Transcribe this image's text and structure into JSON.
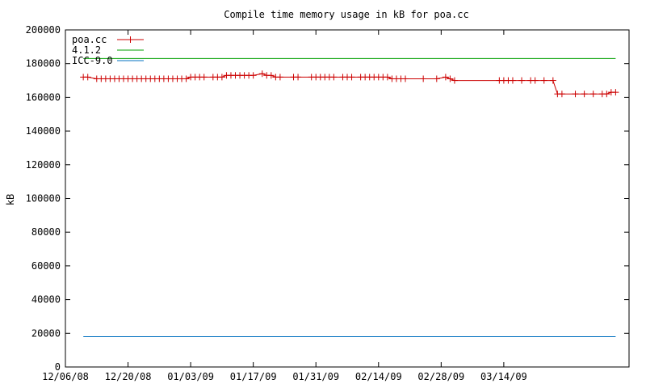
{
  "chart_data": {
    "type": "line",
    "title": "Compile time memory usage in kB for poa.cc",
    "xlabel": "",
    "ylabel": "kB",
    "ylim": [
      0,
      200000
    ],
    "xlim": [
      "2008-12-06",
      "2009-04-11"
    ],
    "yticks": [
      0,
      20000,
      40000,
      60000,
      80000,
      100000,
      120000,
      140000,
      160000,
      180000,
      200000
    ],
    "xticks": [
      {
        "date": "2008-12-06",
        "label": "12/06/08"
      },
      {
        "date": "2008-12-20",
        "label": "12/20/08"
      },
      {
        "date": "2009-01-03",
        "label": "01/03/09"
      },
      {
        "date": "2009-01-17",
        "label": "01/17/09"
      },
      {
        "date": "2009-01-31",
        "label": "01/31/09"
      },
      {
        "date": "2009-02-14",
        "label": "02/14/09"
      },
      {
        "date": "2009-02-28",
        "label": "02/28/09"
      },
      {
        "date": "2009-03-14",
        "label": "03/14/09"
      }
    ],
    "legend_position": "top-left",
    "grid": false,
    "series": [
      {
        "name": "poa.cc",
        "color": "#cc0000",
        "markers": true,
        "x": [
          "2008-12-10",
          "2008-12-11",
          "2008-12-13",
          "2008-12-14",
          "2008-12-15",
          "2008-12-16",
          "2008-12-17",
          "2008-12-18",
          "2008-12-19",
          "2008-12-20",
          "2008-12-21",
          "2008-12-22",
          "2008-12-23",
          "2008-12-24",
          "2008-12-25",
          "2008-12-26",
          "2008-12-27",
          "2008-12-28",
          "2008-12-29",
          "2008-12-30",
          "2008-12-31",
          "2009-01-01",
          "2009-01-02",
          "2009-01-03",
          "2009-01-04",
          "2009-01-05",
          "2009-01-06",
          "2009-01-08",
          "2009-01-09",
          "2009-01-10",
          "2009-01-11",
          "2009-01-12",
          "2009-01-13",
          "2009-01-14",
          "2009-01-15",
          "2009-01-16",
          "2009-01-17",
          "2009-01-19",
          "2009-01-20",
          "2009-01-21",
          "2009-01-22",
          "2009-01-23",
          "2009-01-26",
          "2009-01-27",
          "2009-01-30",
          "2009-01-31",
          "2009-02-01",
          "2009-02-02",
          "2009-02-03",
          "2009-02-04",
          "2009-02-06",
          "2009-02-07",
          "2009-02-08",
          "2009-02-10",
          "2009-02-11",
          "2009-02-12",
          "2009-02-13",
          "2009-02-14",
          "2009-02-15",
          "2009-02-16",
          "2009-02-17",
          "2009-02-18",
          "2009-02-19",
          "2009-02-20",
          "2009-02-24",
          "2009-02-27",
          "2009-03-01",
          "2009-03-02",
          "2009-03-03",
          "2009-03-13",
          "2009-03-14",
          "2009-03-15",
          "2009-03-16",
          "2009-03-18",
          "2009-03-20",
          "2009-03-21",
          "2009-03-23",
          "2009-03-25",
          "2009-03-26",
          "2009-03-27",
          "2009-03-30",
          "2009-04-01",
          "2009-04-03",
          "2009-04-05",
          "2009-04-06",
          "2009-04-07",
          "2009-04-08"
        ],
        "y": [
          172000,
          172000,
          171000,
          171000,
          171000,
          171000,
          171000,
          171000,
          171000,
          171000,
          171000,
          171000,
          171000,
          171000,
          171000,
          171000,
          171000,
          171000,
          171000,
          171000,
          171000,
          171000,
          171000,
          172000,
          172000,
          172000,
          172000,
          172000,
          172000,
          172000,
          173000,
          173000,
          173000,
          173000,
          173000,
          173000,
          173000,
          174000,
          173000,
          173000,
          172000,
          172000,
          172000,
          172000,
          172000,
          172000,
          172000,
          172000,
          172000,
          172000,
          172000,
          172000,
          172000,
          172000,
          172000,
          172000,
          172000,
          172000,
          172000,
          172000,
          171000,
          171000,
          171000,
          171000,
          171000,
          171000,
          172000,
          171000,
          170000,
          170000,
          170000,
          170000,
          170000,
          170000,
          170000,
          170000,
          170000,
          170000,
          162000,
          162000,
          162000,
          162000,
          162000,
          162000,
          162000,
          163000,
          163000
        ]
      },
      {
        "name": "4.1.2",
        "color": "#00a000",
        "markers": false,
        "x": [
          "2008-12-10",
          "2009-04-08"
        ],
        "y": [
          183000,
          183000
        ]
      },
      {
        "name": "ICC-9.0",
        "color": "#0070c0",
        "markers": false,
        "x": [
          "2008-12-10",
          "2009-04-08"
        ],
        "y": [
          18000,
          18000
        ]
      }
    ]
  }
}
